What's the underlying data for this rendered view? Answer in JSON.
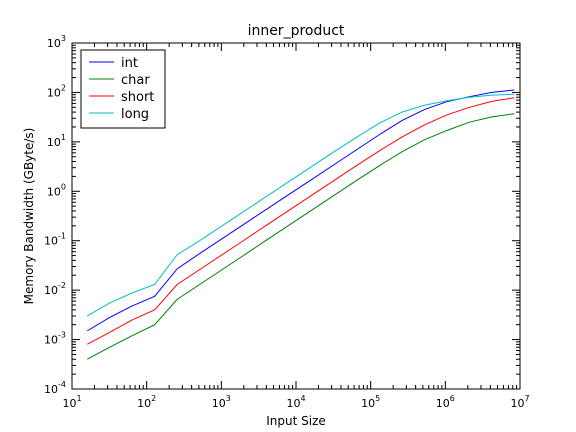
{
  "chart_data": {
    "type": "line",
    "title": "inner_product",
    "xlabel": "Input Size",
    "ylabel": "Memory Bandwidth (GByte/s)",
    "xscale": "log",
    "yscale": "log",
    "xlim": [
      10,
      10000000
    ],
    "ylim": [
      0.0001,
      1000
    ],
    "xticks": [
      {
        "value": 10,
        "base": "10",
        "exp": "1"
      },
      {
        "value": 100,
        "base": "10",
        "exp": "2"
      },
      {
        "value": 1000,
        "base": "10",
        "exp": "3"
      },
      {
        "value": 10000,
        "base": "10",
        "exp": "4"
      },
      {
        "value": 100000,
        "base": "10",
        "exp": "5"
      },
      {
        "value": 1000000,
        "base": "10",
        "exp": "6"
      },
      {
        "value": 10000000,
        "base": "10",
        "exp": "7"
      }
    ],
    "yticks": [
      {
        "value": 0.0001,
        "base": "10",
        "exp": "-4"
      },
      {
        "value": 0.001,
        "base": "10",
        "exp": "-3"
      },
      {
        "value": 0.01,
        "base": "10",
        "exp": "-2"
      },
      {
        "value": 0.1,
        "base": "10",
        "exp": "-1"
      },
      {
        "value": 1,
        "base": "10",
        "exp": "0"
      },
      {
        "value": 10,
        "base": "10",
        "exp": "1"
      },
      {
        "value": 100,
        "base": "10",
        "exp": "2"
      },
      {
        "value": 1000,
        "base": "10",
        "exp": "3"
      }
    ],
    "grid": false,
    "legend_position": "top-left",
    "x": [
      16,
      32,
      64,
      128,
      256,
      512,
      1024,
      2048,
      4096,
      8192,
      16384,
      32768,
      65536,
      131072,
      262144,
      524288,
      1048576,
      2097152,
      4194304,
      8388608
    ],
    "series": [
      {
        "name": "int",
        "color": "#0000ff",
        "values": [
          0.0015,
          0.0028,
          0.0048,
          0.0075,
          0.027,
          0.055,
          0.11,
          0.22,
          0.44,
          0.88,
          1.75,
          3.5,
          7,
          14,
          27,
          45,
          65,
          82,
          100,
          112
        ]
      },
      {
        "name": "char",
        "color": "#008000",
        "values": [
          0.0004,
          0.0007,
          0.0012,
          0.002,
          0.0065,
          0.013,
          0.026,
          0.052,
          0.105,
          0.21,
          0.42,
          0.84,
          1.68,
          3.3,
          6.3,
          11,
          17,
          25,
          32,
          37
        ]
      },
      {
        "name": "short",
        "color": "#ff0000",
        "values": [
          0.0008,
          0.0014,
          0.0025,
          0.004,
          0.013,
          0.026,
          0.052,
          0.104,
          0.21,
          0.42,
          0.84,
          1.68,
          3.35,
          6.6,
          12.5,
          22,
          35,
          50,
          66,
          78
        ]
      },
      {
        "name": "long",
        "color": "#00bfbf",
        "values": [
          0.003,
          0.0055,
          0.0088,
          0.013,
          0.052,
          0.1,
          0.2,
          0.4,
          0.8,
          1.6,
          3.2,
          6.4,
          12.5,
          24,
          40,
          55,
          68,
          80,
          88,
          92
        ]
      }
    ]
  }
}
